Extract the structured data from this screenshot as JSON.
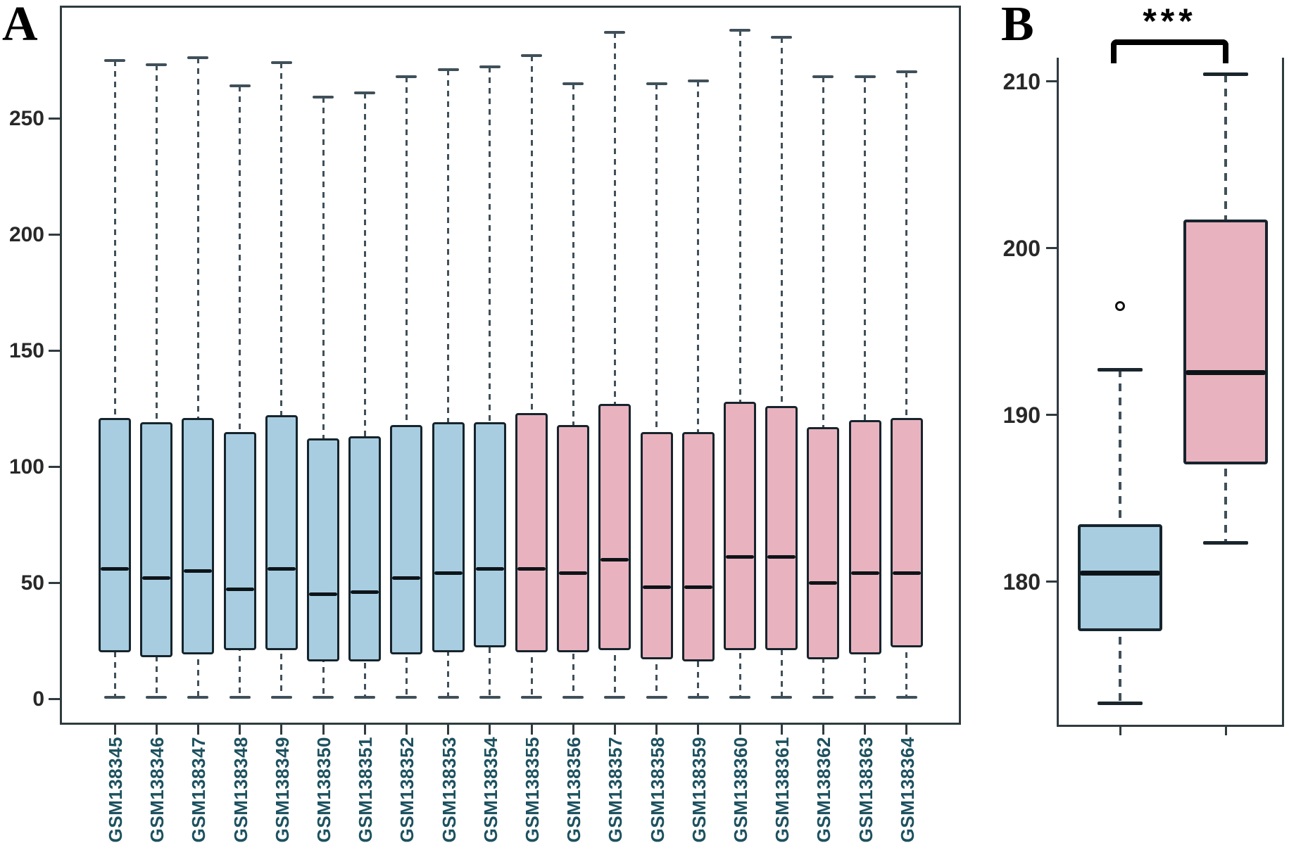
{
  "figure": {
    "panel_a_label": "A",
    "panel_b_label": "B",
    "significance_label": "***"
  },
  "colors": {
    "blue_fill": "#a8cde1",
    "pink_fill": "#e8b3bf",
    "box_border": "#16242c",
    "median": "#0d1418",
    "whisker": "#40505a",
    "axis": "#2f3b3f",
    "tick_label": "#282828",
    "x_label_text": "#1d515f"
  },
  "chart_data": [
    {
      "type": "boxplot",
      "panel": "A",
      "title": "",
      "xlabel": "",
      "ylabel": "",
      "ylim": [
        0,
        298
      ],
      "yticks": [
        0,
        50,
        100,
        150,
        200,
        250
      ],
      "grid": false,
      "series": [
        {
          "name": "GSM138345",
          "group": "blue",
          "low": 0.5,
          "q1": 20,
          "median": 56,
          "q3": 121,
          "high": 275
        },
        {
          "name": "GSM138346",
          "group": "blue",
          "low": 0.5,
          "q1": 18,
          "median": 52,
          "q3": 119,
          "high": 273
        },
        {
          "name": "GSM138347",
          "group": "blue",
          "low": 0.5,
          "q1": 19,
          "median": 55,
          "q3": 121,
          "high": 276
        },
        {
          "name": "GSM138348",
          "group": "blue",
          "low": 0.5,
          "q1": 21,
          "median": 47,
          "q3": 115,
          "high": 264
        },
        {
          "name": "GSM138349",
          "group": "blue",
          "low": 0.5,
          "q1": 21,
          "median": 56,
          "q3": 122,
          "high": 274
        },
        {
          "name": "GSM138350",
          "group": "blue",
          "low": 0.5,
          "q1": 16,
          "median": 45,
          "q3": 112,
          "high": 259
        },
        {
          "name": "GSM138351",
          "group": "blue",
          "low": 0.5,
          "q1": 16,
          "median": 46,
          "q3": 113,
          "high": 261
        },
        {
          "name": "GSM138352",
          "group": "blue",
          "low": 0.5,
          "q1": 19,
          "median": 52,
          "q3": 118,
          "high": 268
        },
        {
          "name": "GSM138353",
          "group": "blue",
          "low": 0.5,
          "q1": 20,
          "median": 54,
          "q3": 119,
          "high": 271
        },
        {
          "name": "GSM138354",
          "group": "blue",
          "low": 0.5,
          "q1": 22,
          "median": 56,
          "q3": 119,
          "high": 272
        },
        {
          "name": "GSM138355",
          "group": "pink",
          "low": 0.5,
          "q1": 20,
          "median": 56,
          "q3": 123,
          "high": 277
        },
        {
          "name": "GSM138356",
          "group": "pink",
          "low": 0.5,
          "q1": 20,
          "median": 54,
          "q3": 118,
          "high": 265
        },
        {
          "name": "GSM138357",
          "group": "pink",
          "low": 0.5,
          "q1": 21,
          "median": 60,
          "q3": 127,
          "high": 287
        },
        {
          "name": "GSM138358",
          "group": "pink",
          "low": 0.5,
          "q1": 17,
          "median": 48,
          "q3": 115,
          "high": 265
        },
        {
          "name": "GSM138359",
          "group": "pink",
          "low": 0.5,
          "q1": 16,
          "median": 48,
          "q3": 115,
          "high": 266
        },
        {
          "name": "GSM138360",
          "group": "pink",
          "low": 0.5,
          "q1": 21,
          "median": 61,
          "q3": 128,
          "high": 288
        },
        {
          "name": "GSM138361",
          "group": "pink",
          "low": 0.5,
          "q1": 21,
          "median": 61,
          "q3": 126,
          "high": 285
        },
        {
          "name": "GSM138362",
          "group": "pink",
          "low": 0.5,
          "q1": 17,
          "median": 50,
          "q3": 117,
          "high": 268
        },
        {
          "name": "GSM138363",
          "group": "pink",
          "low": 0.5,
          "q1": 19,
          "median": 54,
          "q3": 120,
          "high": 268
        },
        {
          "name": "GSM138364",
          "group": "pink",
          "low": 0.5,
          "q1": 22,
          "median": 54,
          "q3": 121,
          "high": 270
        }
      ]
    },
    {
      "type": "boxplot",
      "panel": "B",
      "title": "",
      "xlabel": "",
      "ylabel": "",
      "ylim": [
        171.3,
        211.4
      ],
      "yticks": [
        180,
        190,
        200,
        210
      ],
      "grid": false,
      "significance": "***",
      "series": [
        {
          "name": "blue-group",
          "group": "blue",
          "low": 172.7,
          "q1": 177.0,
          "median": 180.5,
          "q3": 183.4,
          "high": 192.7,
          "outliers": [
            196.5
          ]
        },
        {
          "name": "pink-group",
          "group": "pink",
          "low": 182.3,
          "q1": 187.0,
          "median": 192.5,
          "q3": 201.7,
          "high": 210.4,
          "outliers": []
        }
      ]
    }
  ]
}
